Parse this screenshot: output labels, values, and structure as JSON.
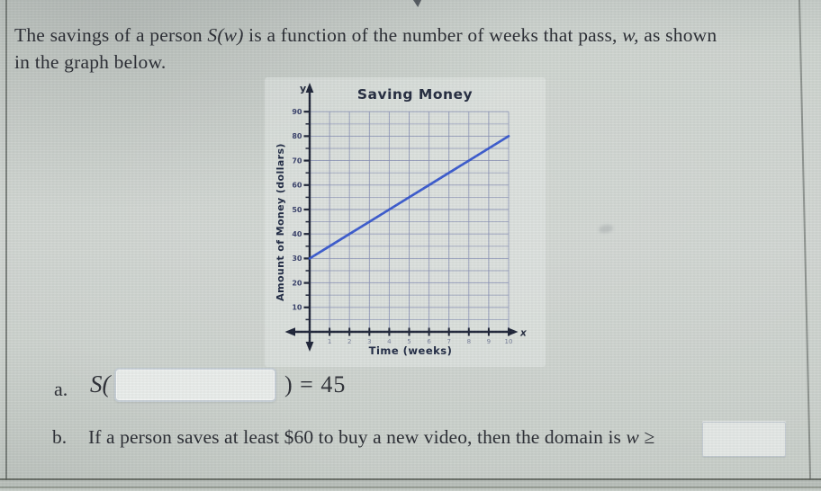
{
  "problem": {
    "t1": "The savings of a person ",
    "m1": "S(w)",
    "t2": " is a function of the number of weeks that pass, ",
    "m2": "w,",
    "t3": " as shown",
    "line2": "in the graph below."
  },
  "question_a": {
    "label": "a.",
    "prefix": "S(",
    "suffix": ") = 45",
    "input_value": ""
  },
  "question_b": {
    "label": "b.",
    "text": "If a person saves at least $60 to buy a new video, then the domain is ",
    "math": "w ≥",
    "input_value": ""
  },
  "chart_data": {
    "type": "line",
    "title": "Saving Money",
    "xlabel": "Time (weeks)",
    "ylabel": "Amount of Money (dollars)",
    "x": [
      0,
      1,
      2,
      3,
      4,
      5,
      6,
      7,
      8,
      9,
      10
    ],
    "series": [
      {
        "name": "S(w)",
        "values": [
          30,
          35,
          40,
          45,
          50,
          55,
          60,
          65,
          70,
          75,
          80
        ]
      }
    ],
    "xlim": [
      0,
      10
    ],
    "ylim": [
      0,
      90
    ],
    "x_ticks": [
      1,
      2,
      3,
      4,
      5,
      6,
      7,
      8,
      9,
      10
    ],
    "y_ticks": [
      10,
      20,
      30,
      40,
      50,
      60,
      70,
      80,
      90
    ],
    "y_minor_step": 5,
    "grid": true,
    "legend": false,
    "axis_letter_x": "x",
    "axis_letter_y": "y",
    "line_color": "#3052cc",
    "grid_color": "#8a92b6",
    "axis_color": "#1c2236",
    "title_color": "#232a3e",
    "label_color": "#1d2741",
    "tick_label_color": "#38406a",
    "x_tick_label_color": "#5a6386"
  }
}
